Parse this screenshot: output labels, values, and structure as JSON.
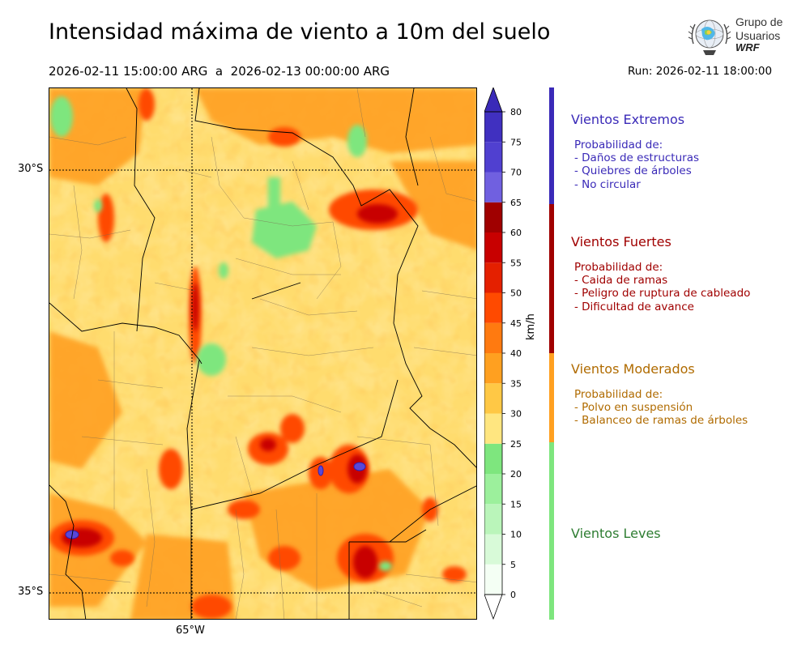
{
  "header": {
    "title": "Intensidad máxima de viento a 10m del suelo",
    "period": "2026-02-11 15:00:00 ARG  a  2026-02-13 00:00:00 ARG",
    "run": "Run: 2026-02-11 18:00:00"
  },
  "logo": {
    "line1": "Grupo de",
    "line2": "Usuarios",
    "line3": "WRF"
  },
  "map": {
    "lat_labels": [
      "30°S",
      "35°S"
    ],
    "lon_labels": [
      "65°W"
    ]
  },
  "colorbar": {
    "unit": "km/h",
    "ticks": [
      "0",
      "5",
      "10",
      "15",
      "20",
      "25",
      "30",
      "35",
      "40",
      "45",
      "50",
      "55",
      "60",
      "65",
      "70",
      "75",
      "80"
    ],
    "colors": [
      "#f4fff4",
      "#d8fad8",
      "#baf5ba",
      "#9cf09c",
      "#7ee67e",
      "#ffe680",
      "#ffc845",
      "#ffa020",
      "#ff7a10",
      "#ff4a00",
      "#e42000",
      "#c80000",
      "#a00000",
      "#7060e0",
      "#5040d0",
      "#4030c0",
      "#3020b0"
    ],
    "green_color": "#7ee67e",
    "purple_color": "#3a2ab8"
  },
  "categories": [
    {
      "title": "Vientos Extremos",
      "color": "#3a2ab8",
      "lines": [
        "Probabilidad de:",
        "- Daños de estructuras",
        "- Quiebres de árboles",
        "- No circular"
      ]
    },
    {
      "title": "Vientos Fuertes",
      "color": "#a00000",
      "lines": [
        "Probabilidad de:",
        "- Caida de ramas",
        "- Peligro de ruptura de cableado",
        "- Dificultad de avance"
      ]
    },
    {
      "title": "Vientos Moderados",
      "color": "#b06b00",
      "lines": [
        "Probabilidad de:",
        "- Polvo en suspensión",
        "- Balanceo de ramas de árboles"
      ]
    },
    {
      "title": "Vientos Leves",
      "color": "#2e7d32",
      "lines": []
    }
  ],
  "risk_bar": {
    "colors": [
      "#3a2ab8",
      "#a00000",
      "#ffa020",
      "#7ee67e"
    ]
  }
}
